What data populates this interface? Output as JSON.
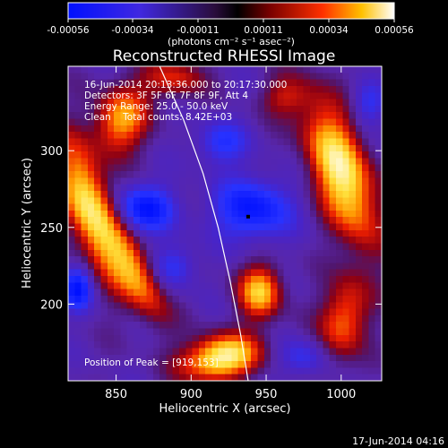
{
  "chart_data": {
    "type": "heatmap",
    "title": "Reconstructed RHESSI Image",
    "xlabel": "Heliocentric X (arcsec)",
    "ylabel": "Heliocentric Y (arcsec)",
    "xlim": [
      818,
      1027
    ],
    "ylim": [
      150,
      355
    ],
    "x_ticks": [
      850,
      900,
      950,
      1000
    ],
    "y_ticks": [
      200,
      250,
      300
    ],
    "colorbar": {
      "range": [
        -0.00056,
        0.00056
      ],
      "ticks": [
        "-0.00056",
        "-0.00034",
        "-0.00011",
        "0.00011",
        "0.00034",
        "0.00056"
      ],
      "unit_label": "(photons cm⁻² s⁻¹ asec⁻²)"
    },
    "annotations": [
      "16-Jun-2014 20:13:36.000 to 20:17:30.000",
      "Detectors: 3F 5F 6F 7F 8F 9F, Att 4",
      "Energy Range: 25.0 - 50.0 keV",
      "Clean    Total counts: 8.42E+03"
    ],
    "peak_label": "Position of Peak = [919,153]",
    "peak_position": [
      919,
      153
    ],
    "limb_curve": [
      [
        879,
        355
      ],
      [
        895,
        320
      ],
      [
        908,
        285
      ],
      [
        918,
        250
      ],
      [
        926,
        215
      ],
      [
        933,
        180
      ],
      [
        938,
        150
      ]
    ],
    "peak_marker": [
      938,
      257
    ],
    "blobs": [
      {
        "x": 833,
        "y": 262,
        "sx": 11,
        "sy": 32,
        "rot": -0.35,
        "a": 1.25
      },
      {
        "x": 853,
        "y": 320,
        "sx": 12,
        "sy": 16,
        "rot": 0.3,
        "a": 0.95
      },
      {
        "x": 864,
        "y": 218,
        "sx": 9,
        "sy": 22,
        "rot": -0.5,
        "a": 0.85
      },
      {
        "x": 888,
        "y": 347,
        "sx": 14,
        "sy": 9,
        "rot": 0,
        "a": 0.6
      },
      {
        "x": 920,
        "y": 165,
        "sx": 18,
        "sy": 10,
        "rot": -0.2,
        "a": 1.35
      },
      {
        "x": 946,
        "y": 208,
        "sx": 10,
        "sy": 12,
        "rot": 0,
        "a": 1.05
      },
      {
        "x": 1000,
        "y": 286,
        "sx": 13,
        "sy": 34,
        "rot": -0.35,
        "a": 1.3
      },
      {
        "x": 1002,
        "y": 190,
        "sx": 11,
        "sy": 20,
        "rot": 0.2,
        "a": 0.8
      },
      {
        "x": 962,
        "y": 335,
        "sx": 11,
        "sy": 9,
        "rot": 0,
        "a": 0.45
      },
      {
        "x": 869,
        "y": 262,
        "sx": 14,
        "sy": 11,
        "rot": 0,
        "a": -0.85
      },
      {
        "x": 941,
        "y": 262,
        "sx": 18,
        "sy": 14,
        "rot": 0,
        "a": -0.85
      },
      {
        "x": 824,
        "y": 210,
        "sx": 7,
        "sy": 10,
        "rot": 0,
        "a": -0.85
      },
      {
        "x": 920,
        "y": 305,
        "sx": 12,
        "sy": 10,
        "rot": 0,
        "a": -0.55
      },
      {
        "x": 889,
        "y": 225,
        "sx": 10,
        "sy": 10,
        "rot": 0,
        "a": -0.5
      },
      {
        "x": 975,
        "y": 165,
        "sx": 12,
        "sy": 9,
        "rot": 0,
        "a": -0.45
      },
      {
        "x": 1018,
        "y": 330,
        "sx": 8,
        "sy": 10,
        "rot": 0,
        "a": -0.45
      }
    ]
  },
  "footer": {
    "date": "17-Jun-2014 04:16"
  }
}
